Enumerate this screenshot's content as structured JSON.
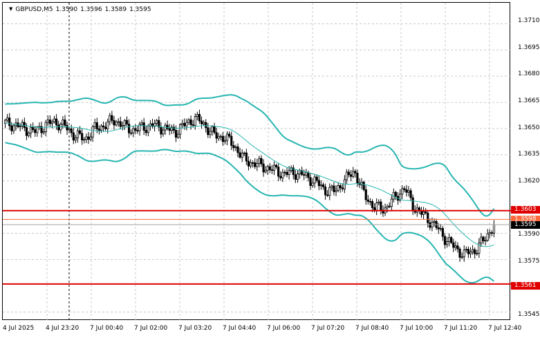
{
  "header": {
    "symbol": "GBPUSD,M5",
    "open": "1.3590",
    "high": "1.3596",
    "low": "1.3589",
    "close": "1.3595",
    "menu_icon": "triangle-down-icon"
  },
  "price_axis": {
    "labels": [
      "1.3710",
      "1.3695",
      "1.3680",
      "1.3665",
      "1.3650",
      "1.3635",
      "1.3620",
      "1.3590",
      "1.3575",
      "1.3545"
    ]
  },
  "time_axis": {
    "labels": [
      "4 Jul 2025",
      "4 Jul 23:20",
      "7 Jul 00:40",
      "7 Jul 02:00",
      "7 Jul 03:20",
      "7 Jul 04:40",
      "7 Jul 06:00",
      "7 Jul 07:20",
      "7 Jul 08:40",
      "7 Jul 10:00",
      "7 Jul 11:20",
      "7 Jul 12:40"
    ]
  },
  "levels": [
    {
      "price": "1.3603",
      "color": "#e00000"
    },
    {
      "price": "1.3598",
      "color": "#ff6a3d"
    },
    {
      "price": "1.3561",
      "color": "#e00000"
    }
  ],
  "current_price": {
    "value": "1.3595",
    "color": "#000000"
  },
  "colors": {
    "bands": "#26b5b0",
    "level_main": "#e00000",
    "level_secondary": "#ff6a3d",
    "grid": "#c8c8c8",
    "candle": "#000000"
  },
  "chart_data": {
    "type": "candlestick",
    "symbol": "GBPUSD",
    "timeframe": "M5",
    "ylim": [
      1.354,
      1.3722
    ],
    "indicator": "Bollinger Bands",
    "horizontal_levels": [
      1.3603,
      1.3598,
      1.3561
    ],
    "close_path": [
      1.3653,
      1.3652,
      1.365,
      1.3648,
      1.3652,
      1.3654,
      1.3651,
      1.3646,
      1.3644,
      1.365,
      1.3652,
      1.3655,
      1.3651,
      1.3649,
      1.3651,
      1.3652,
      1.365,
      1.3648,
      1.3652,
      1.3656,
      1.3652,
      1.3646,
      1.3645,
      1.364,
      1.3632,
      1.363,
      1.3628,
      1.3626,
      1.3624,
      1.3625,
      1.3623,
      1.362,
      1.3615,
      1.3614,
      1.362,
      1.3626,
      1.3612,
      1.3605,
      1.3604,
      1.361,
      1.3616,
      1.3605,
      1.36,
      1.3595,
      1.3588,
      1.3582,
      1.3578,
      1.358,
      1.3586,
      1.3595
    ]
  }
}
